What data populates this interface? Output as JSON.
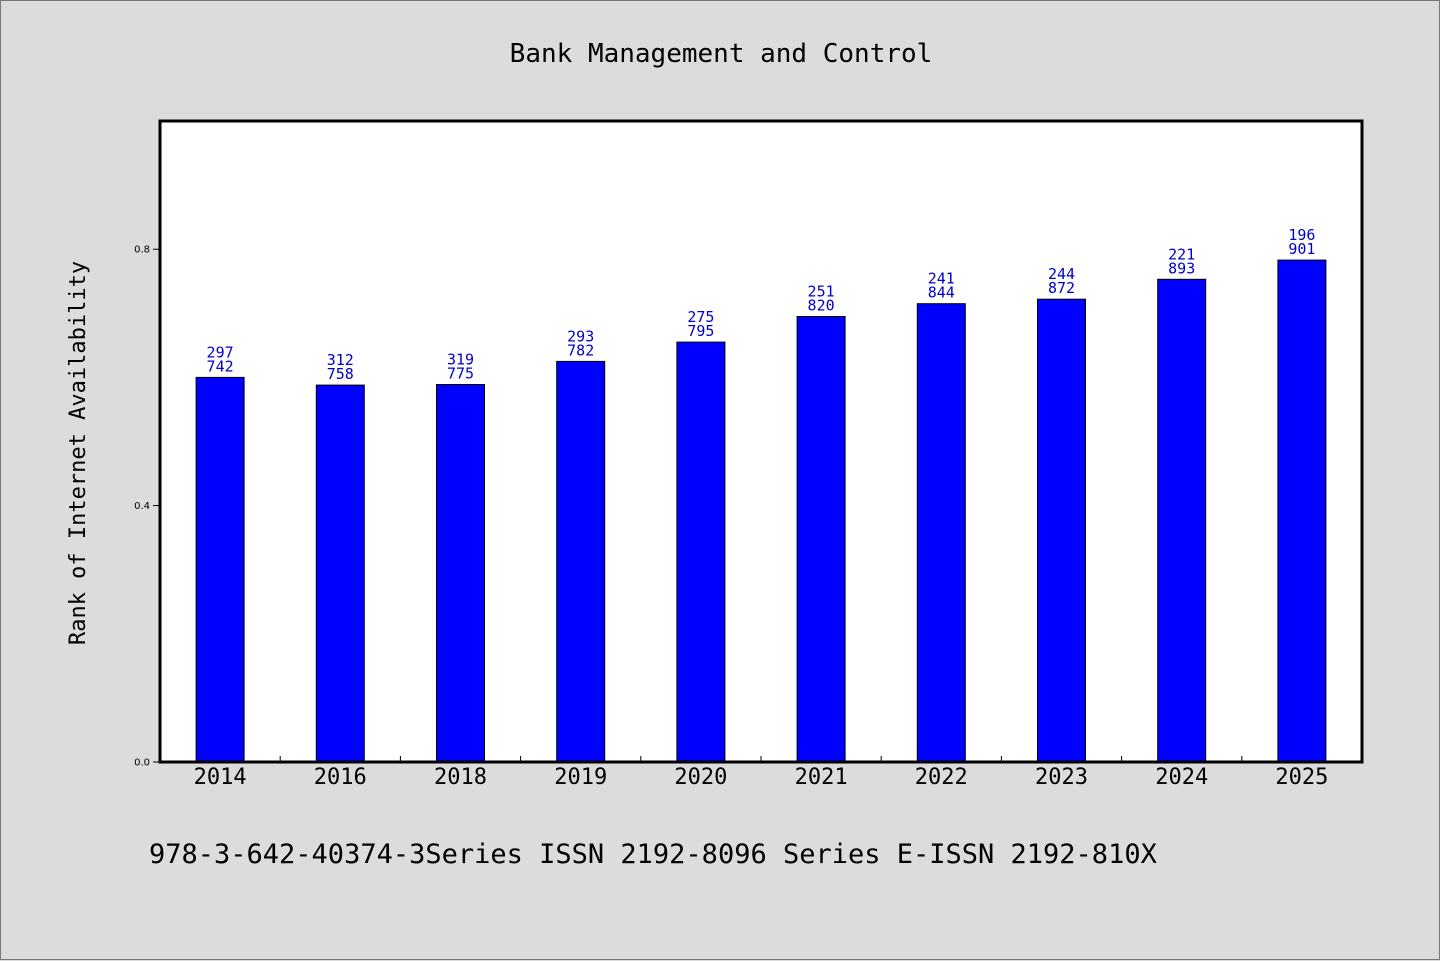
{
  "chart_data": {
    "type": "bar",
    "title": "Bank Management and Control",
    "xlabel": "",
    "ylabel": "Rank of Internet Availability",
    "categories": [
      "2014",
      "2016",
      "2018",
      "2019",
      "2020",
      "2021",
      "2022",
      "2023",
      "2024",
      "2025"
    ],
    "series": [
      {
        "values": [
          0.6,
          0.588,
          0.589,
          0.625,
          0.655,
          0.695,
          0.715,
          0.722,
          0.753,
          0.783
        ],
        "color": "#0000ff"
      }
    ],
    "data_labels": [
      [
        "297",
        "742"
      ],
      [
        "312",
        "758"
      ],
      [
        "319",
        "775"
      ],
      [
        "293",
        "782"
      ],
      [
        "275",
        "795"
      ],
      [
        "251",
        "820"
      ],
      [
        "241",
        "844"
      ],
      [
        "244",
        "872"
      ],
      [
        "221",
        "893"
      ],
      [
        "196",
        "901"
      ]
    ],
    "y_ticks": [
      0.0,
      0.4,
      0.8
    ],
    "y_tick_labels": [
      "0.0",
      "0.4",
      "0.8"
    ],
    "ylim": [
      0,
      1.0
    ],
    "grid": false,
    "data_label_color": "#0000cc"
  },
  "footer": {
    "text": "978-3-642-40374-3Series ISSN 2192-8096 Series E-ISSN 2192-810X"
  }
}
